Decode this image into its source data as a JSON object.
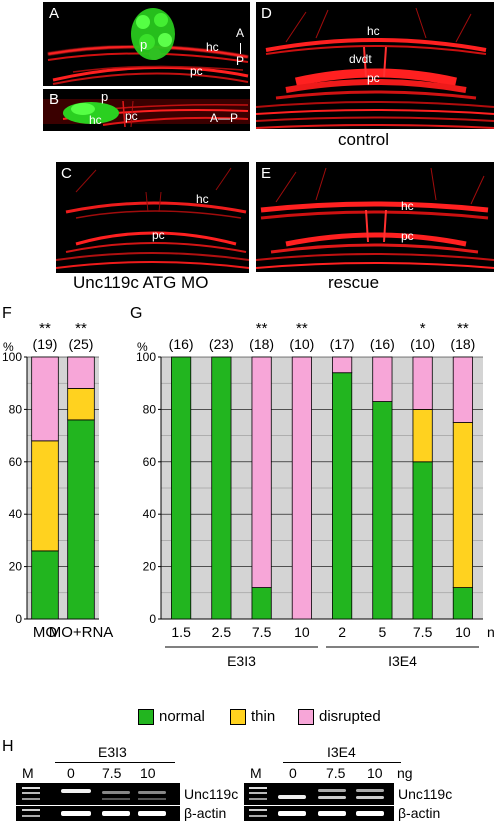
{
  "panels": {
    "A": {
      "letter": "A",
      "labels": {
        "p": "p",
        "hc": "hc",
        "pc": "pc",
        "a": "A",
        "p_axis": "P"
      }
    },
    "B": {
      "letter": "B",
      "labels": {
        "p": "p",
        "hc": "hc",
        "pc": "pc",
        "axis": "A—P"
      }
    },
    "C": {
      "letter": "C",
      "labels": {
        "hc": "hc",
        "pc": "pc"
      }
    },
    "D": {
      "letter": "D",
      "labels": {
        "hc": "hc",
        "dvdt": "dvdt",
        "pc": "pc"
      }
    },
    "E": {
      "letter": "E",
      "labels": {
        "hc": "hc",
        "pc": "pc"
      }
    }
  },
  "captions": {
    "control": "control",
    "morphant": "Unc119c ATG MO",
    "rescue": "rescue"
  },
  "colors": {
    "normal": "#22b51f",
    "thin": "#ffd21f",
    "disrupted": "#f7a6d8",
    "plot_bg": "#d4d4d4",
    "axon": "#ff1a1a",
    "gfp": "#33ee22"
  },
  "chart_data": [
    {
      "type": "bar",
      "panel": "F",
      "ylabel": "%",
      "ylim": [
        0,
        100
      ],
      "yticks": [
        0,
        20,
        40,
        60,
        80,
        100
      ],
      "grid": true,
      "stacked": true,
      "categories": [
        "MO",
        "MO+RNA"
      ],
      "n_labels": [
        "(19)",
        "(25)"
      ],
      "significance": [
        "**",
        "**"
      ],
      "series": [
        {
          "name": "normal",
          "values": [
            26,
            76
          ]
        },
        {
          "name": "thin",
          "values": [
            42,
            12
          ]
        },
        {
          "name": "disrupted",
          "values": [
            32,
            12
          ]
        }
      ]
    },
    {
      "type": "bar",
      "panel": "G",
      "ylabel": "%",
      "ylim": [
        0,
        100
      ],
      "yticks": [
        0,
        20,
        40,
        60,
        80,
        100
      ],
      "grid": true,
      "stacked": true,
      "categories": [
        "1.5",
        "2.5",
        "7.5",
        "10",
        "2",
        "5",
        "7.5",
        "10"
      ],
      "unit": "ng",
      "groups": [
        {
          "name": "E3I3",
          "start": 0,
          "end": 3
        },
        {
          "name": "I3E4",
          "start": 4,
          "end": 7
        }
      ],
      "n_labels": [
        "(16)",
        "(23)",
        "(18)",
        "(10)",
        "(17)",
        "(16)",
        "(10)",
        "(18)"
      ],
      "significance": [
        "",
        "",
        "**",
        "**",
        "",
        "",
        "*",
        "**"
      ],
      "series": [
        {
          "name": "normal",
          "values": [
            100,
            100,
            12,
            0,
            94,
            83,
            60,
            12
          ]
        },
        {
          "name": "thin",
          "values": [
            0,
            0,
            0,
            0,
            0,
            0,
            20,
            63
          ]
        },
        {
          "name": "disrupted",
          "values": [
            0,
            0,
            88,
            100,
            6,
            17,
            20,
            25
          ]
        }
      ]
    }
  ],
  "legend": [
    "normal",
    "thin",
    "disrupted"
  ],
  "panel_letters": {
    "F": "F",
    "G": "G",
    "H": "H"
  },
  "gel": {
    "left": {
      "group": "E3I3",
      "lanes": [
        "M",
        "0",
        "7.5",
        "10"
      ],
      "bands": [
        "Unc119c",
        "β-actin"
      ]
    },
    "right": {
      "group": "I3E4",
      "lanes": [
        "M",
        "0",
        "7.5",
        "10"
      ],
      "unit": "ng",
      "bands": [
        "Unc119c",
        "β-actin"
      ]
    }
  }
}
